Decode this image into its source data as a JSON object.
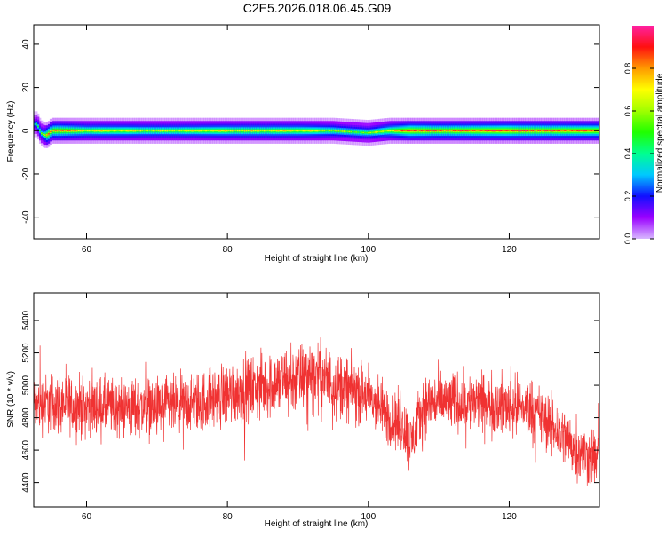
{
  "title": "C2E5.2026.018.06.45.G09",
  "colors": {
    "snr_line": "#f03232",
    "spectrum_ridge_core": "#ff2010",
    "axis": "#000000"
  },
  "chart_data": [
    {
      "type": "heatmap",
      "xlabel": "Height of straight line (km)",
      "ylabel": "Frequency (Hz)",
      "xlim": [
        52.5,
        132.8
      ],
      "ylim": [
        -50,
        49
      ],
      "xticks": [
        60,
        80,
        100,
        120
      ],
      "yticks": [
        -40,
        -20,
        0,
        20,
        40
      ],
      "colorbar": {
        "label": "Normalized spectral amplitude",
        "range": [
          0,
          1
        ],
        "ticks": [
          0.0,
          0.2,
          0.4,
          0.6,
          0.8
        ],
        "colormap": "rainbow (violet-blue-cyan-green-yellow-orange-red-magenta)"
      },
      "ridge": {
        "frequency_hz": 0,
        "x": [
          52.5,
          53.0,
          53.5,
          54.0,
          54.5,
          55.0,
          56.0,
          60,
          70,
          80,
          90,
          95,
          100,
          103,
          106,
          110,
          120,
          132.8
        ],
        "center_hz": [
          3,
          3,
          -1,
          -2,
          -2,
          0,
          0,
          0,
          0,
          0,
          0,
          0,
          -1,
          0,
          0,
          0,
          0,
          0
        ],
        "peak_amplitude": [
          0.3,
          0.45,
          0.5,
          0.55,
          0.9,
          0.8,
          0.85,
          0.7,
          0.65,
          0.7,
          0.7,
          0.6,
          0.55,
          0.7,
          0.9,
          0.85,
          0.9,
          0.85
        ]
      }
    },
    {
      "type": "line",
      "xlabel": "Height of straight line (km)",
      "ylabel": "SNR (10 * v/v)",
      "xlim": [
        52.5,
        132.8
      ],
      "ylim": [
        4250,
        5570
      ],
      "xticks": [
        60,
        80,
        100,
        120
      ],
      "yticks": [
        4400,
        4600,
        4800,
        5000,
        5200,
        5400
      ],
      "series": [
        {
          "x": [
            52.5,
            55,
            60,
            65,
            70,
            75,
            80,
            85,
            88,
            90,
            92,
            95,
            100,
            103,
            105,
            106,
            108,
            110,
            115,
            120,
            123,
            125,
            128,
            130,
            132.8
          ],
          "values": [
            4880,
            4890,
            4870,
            4860,
            4860,
            4880,
            4950,
            4990,
            5020,
            5040,
            5080,
            5010,
            4930,
            4800,
            4750,
            4640,
            4880,
            4900,
            4890,
            4870,
            4860,
            4780,
            4680,
            4580,
            4550
          ],
          "noise_amplitude": [
            130,
            130,
            130,
            130,
            130,
            130,
            140,
            140,
            150,
            150,
            150,
            140,
            130,
            130,
            130,
            130,
            130,
            130,
            130,
            130,
            130,
            130,
            130,
            130,
            130
          ]
        }
      ]
    }
  ]
}
